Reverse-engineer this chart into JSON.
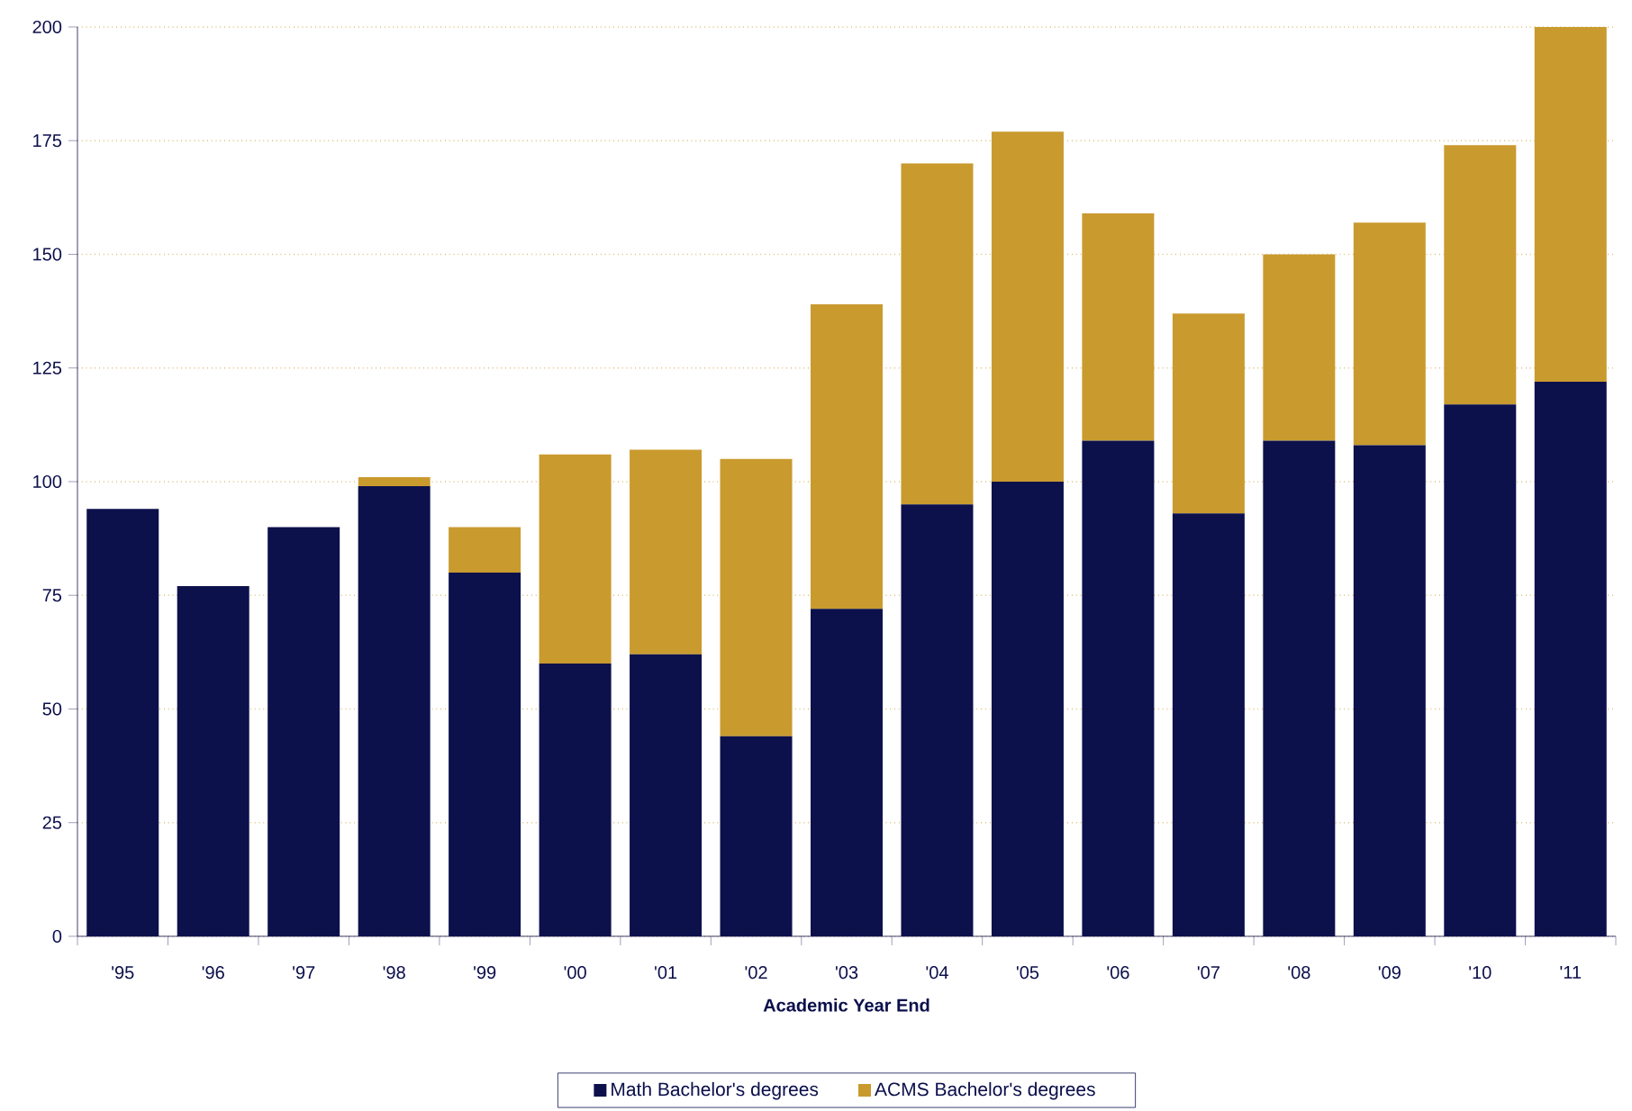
{
  "chart_data": {
    "type": "bar",
    "stacked": true,
    "xlabel": "Academic Year End",
    "categories": [
      "'95",
      "'96",
      "'97",
      "'98",
      "'99",
      "'00",
      "'01",
      "'02",
      "'03",
      "'04",
      "'05",
      "'06",
      "'07",
      "'08",
      "'09",
      "'10",
      "'11"
    ],
    "series": [
      {
        "name": "Math Bachelor's degrees",
        "color": "#0c104b",
        "values": [
          94,
          77,
          90,
          99,
          80,
          60,
          62,
          44,
          72,
          95,
          100,
          109,
          93,
          109,
          108,
          117,
          122
        ]
      },
      {
        "name": "ACMS Bachelor's degrees",
        "color": "#c99a2e",
        "values": [
          0,
          0,
          0,
          2,
          10,
          46,
          45,
          61,
          67,
          75,
          77,
          50,
          44,
          41,
          49,
          57,
          78
        ]
      }
    ],
    "ylim": [
      0,
      200
    ],
    "yticks": [
      0,
      25,
      50,
      75,
      100,
      125,
      150,
      175,
      200
    ],
    "grid": "y",
    "legend": "bottom"
  }
}
